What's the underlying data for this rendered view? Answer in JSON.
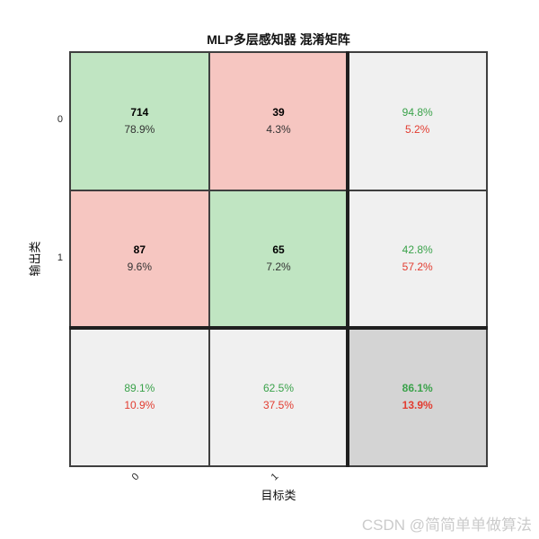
{
  "chart_data": {
    "type": "heatmap",
    "subtype": "confusion-matrix",
    "title": "MLP多层感知器 混淆矩阵",
    "xlabel": "目标类",
    "ylabel": "输出类",
    "class_labels": [
      "0",
      "1"
    ],
    "counts": [
      [
        714,
        39
      ],
      [
        87,
        65
      ]
    ],
    "percent_of_total": [
      [
        "78.9%",
        "4.3%"
      ],
      [
        "9.6%",
        "7.2%"
      ]
    ],
    "row_summary_green_red": [
      [
        "94.8%",
        "5.2%"
      ],
      [
        "42.8%",
        "57.2%"
      ]
    ],
    "col_summary_green_red": [
      [
        "89.1%",
        "10.9%"
      ],
      [
        "62.5%",
        "37.5%"
      ]
    ],
    "overall_green_red": [
      "86.1%",
      "13.9%"
    ],
    "legend_position": "none",
    "grid": "on",
    "cells": [
      [
        {
          "line1": "714",
          "line2": "78.9%"
        },
        {
          "line1": "39",
          "line2": "4.3%"
        },
        {
          "line1": "94.8%",
          "line2": "5.2%"
        }
      ],
      [
        {
          "line1": "87",
          "line2": "9.6%"
        },
        {
          "line1": "65",
          "line2": "7.2%"
        },
        {
          "line1": "42.8%",
          "line2": "57.2%"
        }
      ],
      [
        {
          "line1": "89.1%",
          "line2": "10.9%"
        },
        {
          "line1": "62.5%",
          "line2": "37.5%"
        },
        {
          "line1": "86.1%",
          "line2": "13.9%"
        }
      ]
    ]
  },
  "axes": {
    "yticks": [
      "0",
      "1"
    ],
    "xticks": [
      "0",
      "1"
    ]
  },
  "colors": {
    "correct_cell": "#c0e5c2",
    "incorrect_cell": "#f6c6c1",
    "summary_cell": "#f0f0f0",
    "total_cell": "#d4d4d4",
    "green_text": "#3aa24a",
    "red_text": "#e23c30",
    "grid_line": "#3f3f3f",
    "heavy_separator": "#1f1f1f",
    "watermark_text": "#cbcbcb"
  },
  "watermark": {
    "text": "CSDN @简简单单做算法"
  }
}
